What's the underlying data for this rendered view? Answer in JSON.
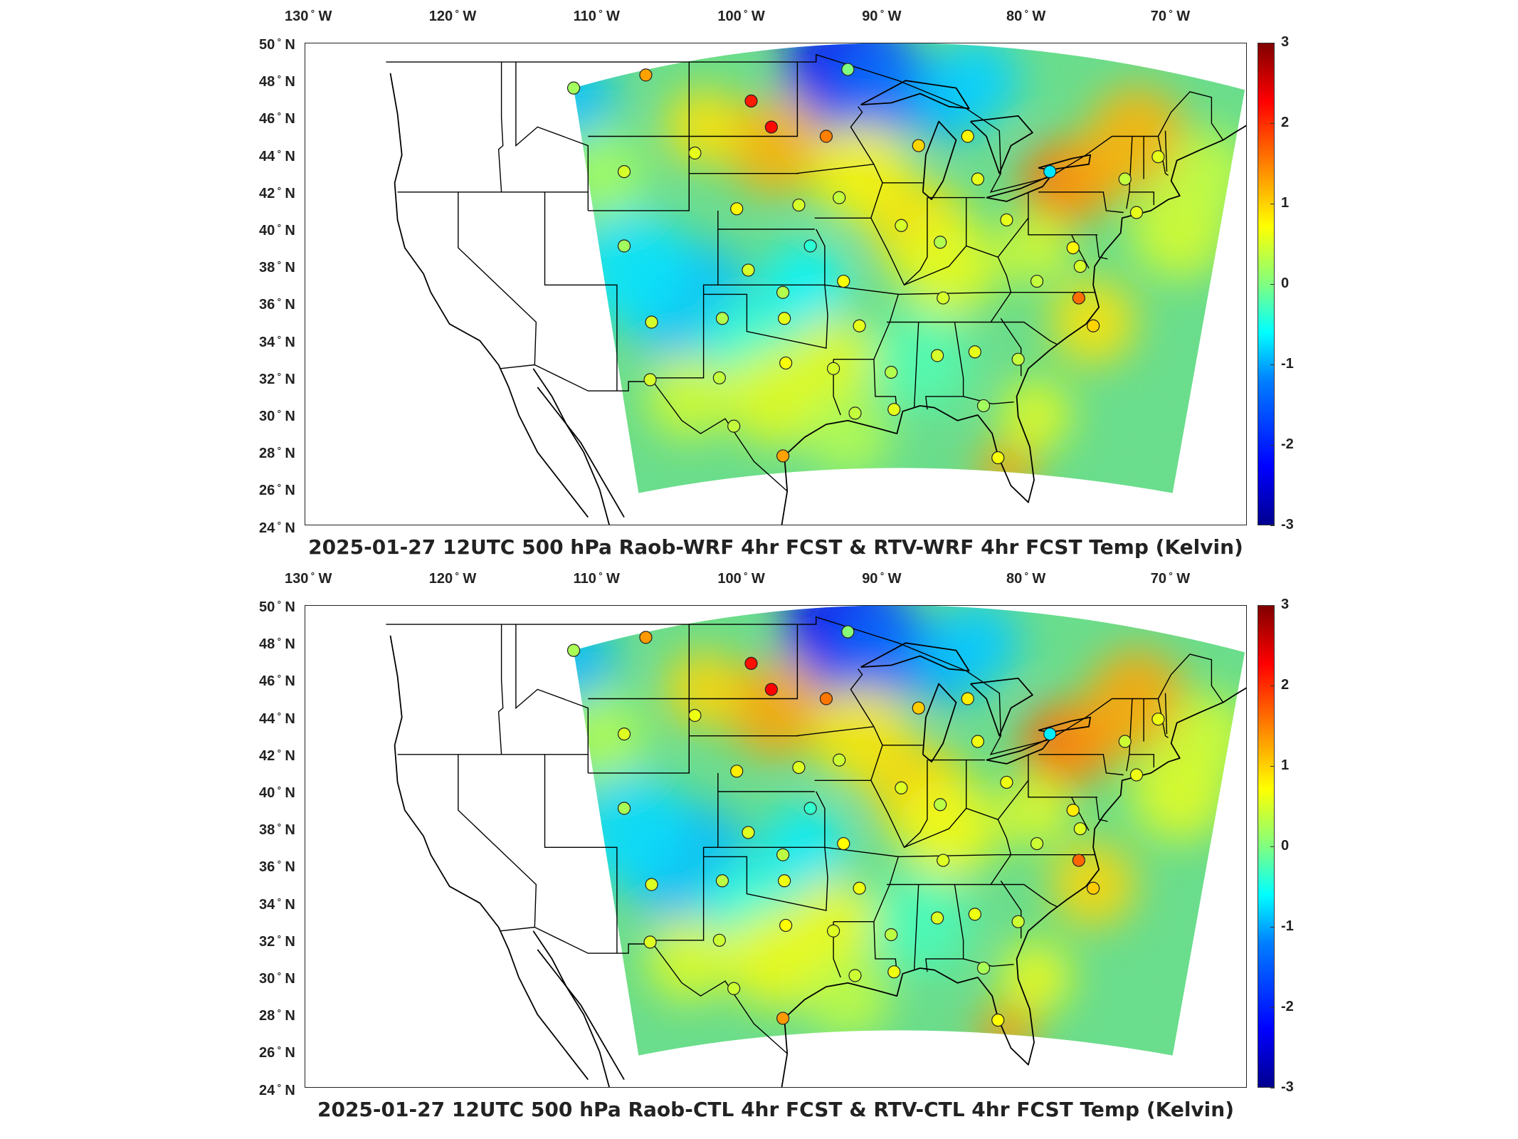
{
  "panels": [
    {
      "id": "top",
      "title": "2025-01-27 12UTC 500 hPa Raob-WRF 4hr FCST & RTV-WRF 4hr FCST Temp (Kelvin)"
    },
    {
      "id": "bottom",
      "title": "2025-01-27 12UTC 500 hPa Raob-CTL 4hr FCST & RTV-CTL 4hr FCST Temp (Kelvin)"
    }
  ],
  "lon_ticks": [
    "130",
    "120",
    "110",
    "100",
    "90",
    "80",
    "70"
  ],
  "lon_suffix": "W",
  "lat_ticks": [
    "50",
    "48",
    "46",
    "44",
    "42",
    "40",
    "38",
    "36",
    "34",
    "32",
    "30",
    "28",
    "26",
    "24"
  ],
  "lat_suffix": "N",
  "colorbar": {
    "ticks": [
      "3",
      "2",
      "1",
      "0",
      "-1",
      "-2",
      "-3"
    ],
    "min": -3,
    "max": 3,
    "colormap": "jet"
  },
  "colors": {
    "field_base": "#66e08a",
    "cold": "#1e7bff",
    "warm": "#ffd21a",
    "hot": "#ff3c14",
    "coast": "#000000",
    "border": "#000000"
  }
}
